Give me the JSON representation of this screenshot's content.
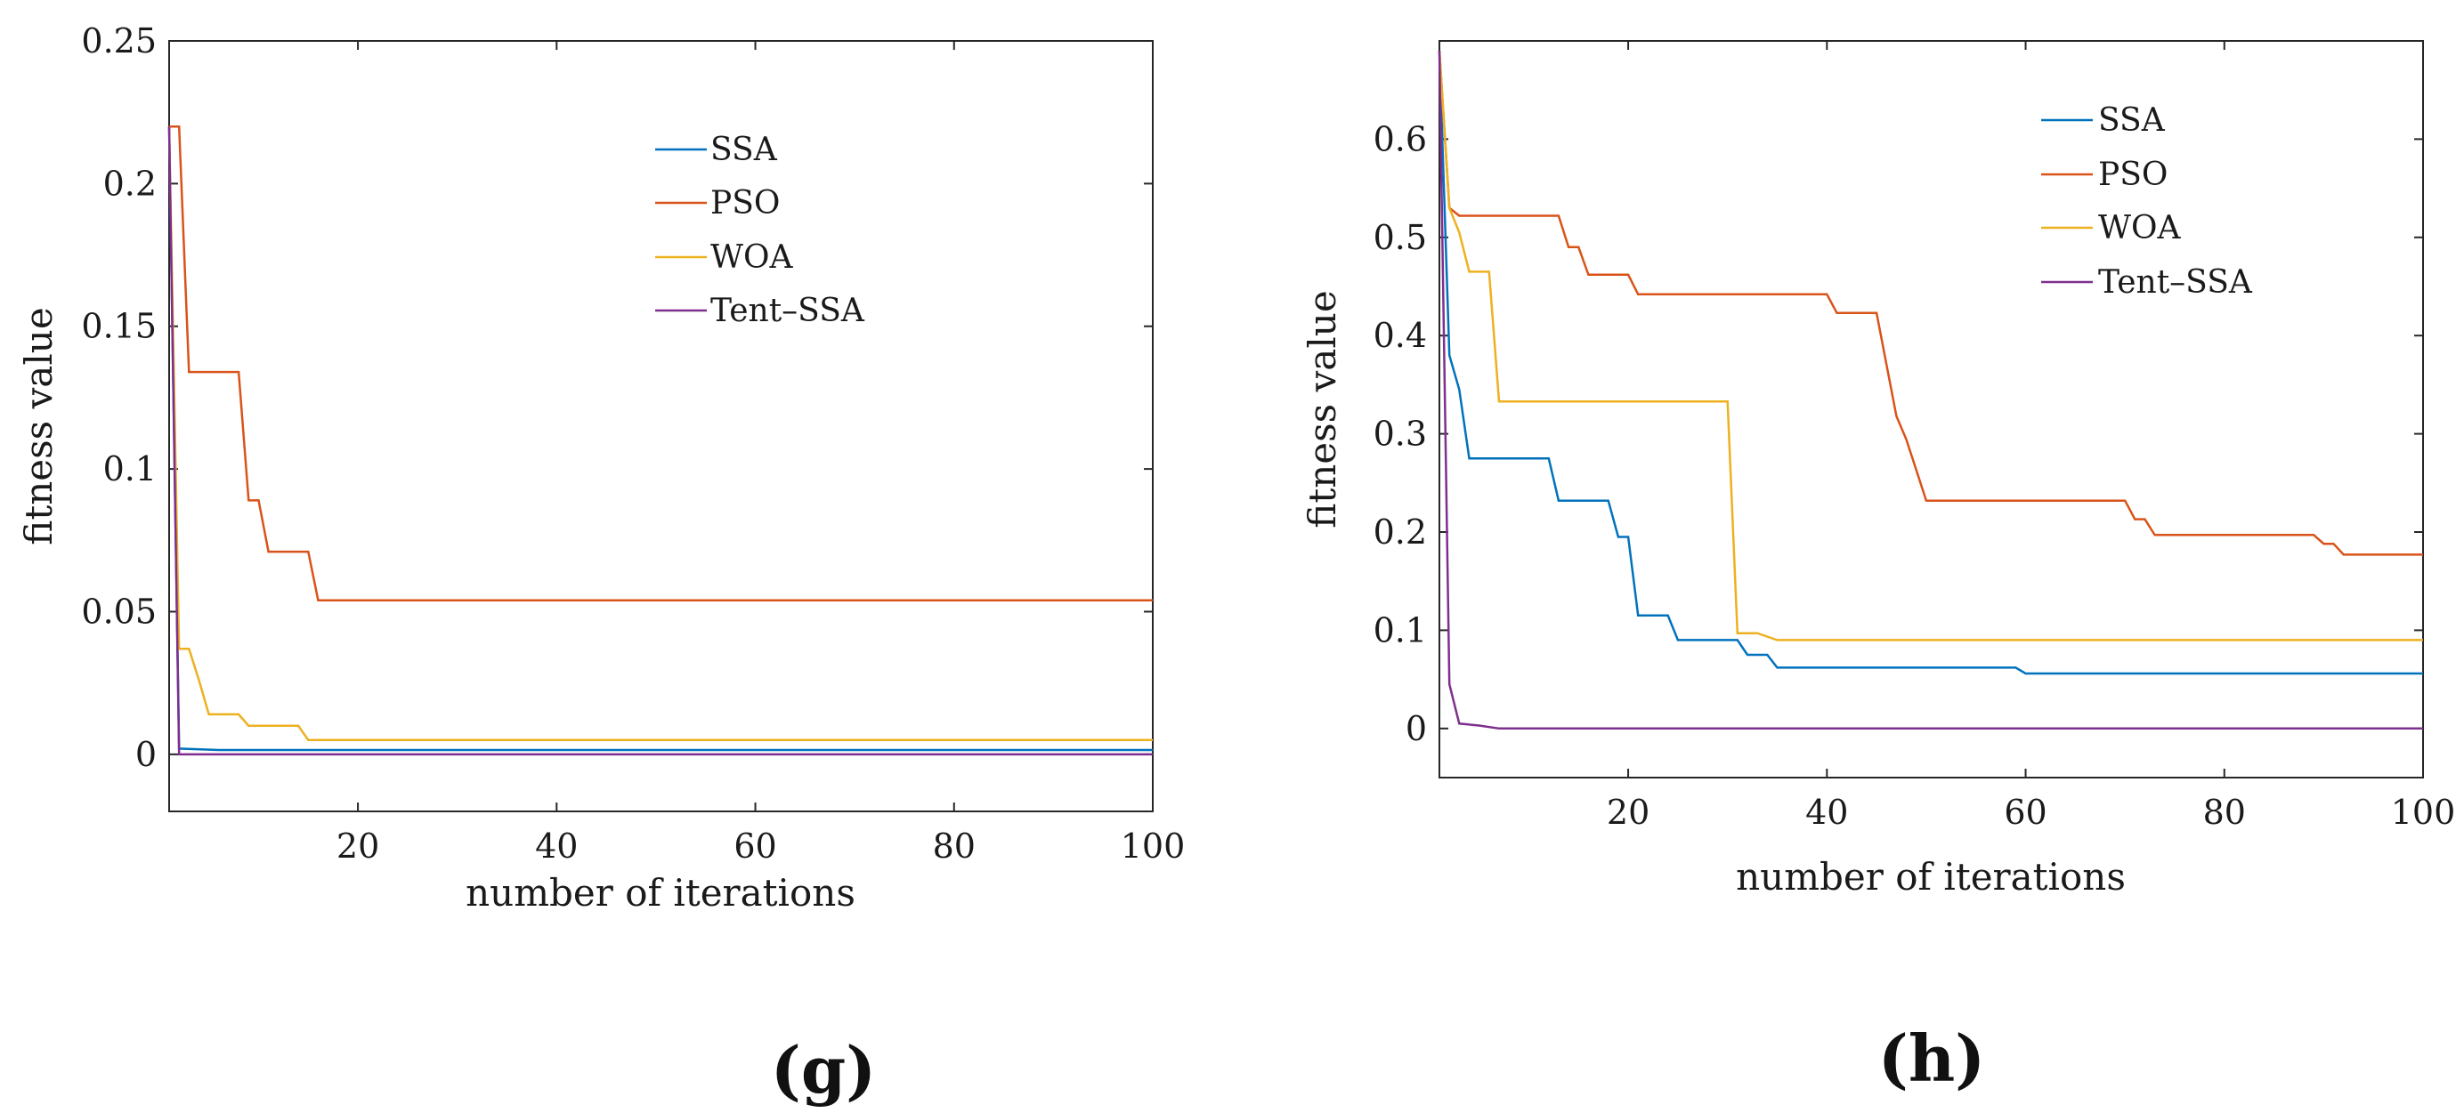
{
  "figure": {
    "panel_labels": [
      "(g)",
      "(h)"
    ]
  },
  "chart_data": [
    {
      "type": "line",
      "panel": "(g)",
      "xlabel": "number of iterations",
      "ylabel": "fitness value",
      "xlim": [
        1,
        100
      ],
      "ylim": [
        -0.02,
        0.25
      ],
      "xticks": [
        20,
        40,
        60,
        80,
        100
      ],
      "xtick_labels": [
        "20",
        "40",
        "60",
        "80",
        "100"
      ],
      "yticks": [
        0,
        0.05,
        0.1,
        0.15,
        0.2,
        0.25
      ],
      "ytick_labels": [
        "0",
        "0.05",
        "0.1",
        "0.15",
        "0.2",
        "0.25"
      ],
      "grid": false,
      "legend_position": "upper-center-right",
      "step": true,
      "series": [
        {
          "name": "SSA",
          "color": "#0072BD",
          "points": [
            [
              1,
              0.22
            ],
            [
              2,
              0.002
            ],
            [
              6,
              0.0015
            ],
            [
              100,
              0.0015
            ]
          ]
        },
        {
          "name": "PSO",
          "color": "#D95319",
          "points": [
            [
              1,
              0.22
            ],
            [
              2,
              0.22
            ],
            [
              3,
              0.134
            ],
            [
              8,
              0.134
            ],
            [
              9,
              0.089
            ],
            [
              10,
              0.089
            ],
            [
              11,
              0.071
            ],
            [
              15,
              0.071
            ],
            [
              16,
              0.054
            ],
            [
              100,
              0.054
            ]
          ]
        },
        {
          "name": "WOA",
          "color": "#EDB120",
          "points": [
            [
              1,
              0.22
            ],
            [
              2,
              0.037
            ],
            [
              3,
              0.037
            ],
            [
              4,
              0.026
            ],
            [
              5,
              0.014
            ],
            [
              8,
              0.014
            ],
            [
              9,
              0.01
            ],
            [
              14,
              0.01
            ],
            [
              15,
              0.005
            ],
            [
              100,
              0.005
            ]
          ]
        },
        {
          "name": "Tent–SSA",
          "color": "#7E2F8E",
          "points": [
            [
              1,
              0.22
            ],
            [
              2,
              0.0
            ],
            [
              100,
              0.0
            ]
          ]
        }
      ]
    },
    {
      "type": "line",
      "panel": "(h)",
      "xlabel": "number of iterations",
      "ylabel": "fitness value",
      "xlim": [
        1,
        100
      ],
      "ylim": [
        -0.05,
        0.7
      ],
      "xticks": [
        20,
        40,
        60,
        80,
        100
      ],
      "xtick_labels": [
        "20",
        "40",
        "60",
        "80",
        "100"
      ],
      "yticks": [
        0,
        0.1,
        0.2,
        0.3,
        0.4,
        0.5,
        0.6
      ],
      "ytick_labels": [
        "0",
        "0.1",
        "0.2",
        "0.3",
        "0.4",
        "0.5",
        "0.6"
      ],
      "grid": false,
      "legend_position": "upper-right",
      "step": true,
      "series": [
        {
          "name": "SSA",
          "color": "#0072BD",
          "points": [
            [
              1,
              0.69
            ],
            [
              2,
              0.38
            ],
            [
              3,
              0.345
            ],
            [
              4,
              0.275
            ],
            [
              12,
              0.275
            ],
            [
              13,
              0.232
            ],
            [
              18,
              0.232
            ],
            [
              19,
              0.195
            ],
            [
              20,
              0.195
            ],
            [
              21,
              0.115
            ],
            [
              24,
              0.115
            ],
            [
              25,
              0.09
            ],
            [
              31,
              0.09
            ],
            [
              32,
              0.075
            ],
            [
              34,
              0.075
            ],
            [
              35,
              0.062
            ],
            [
              59,
              0.062
            ],
            [
              60,
              0.056
            ],
            [
              100,
              0.056
            ]
          ]
        },
        {
          "name": "PSO",
          "color": "#D95319",
          "points": [
            [
              1,
              0.69
            ],
            [
              2,
              0.53
            ],
            [
              3,
              0.522
            ],
            [
              13,
              0.522
            ],
            [
              14,
              0.49
            ],
            [
              15,
              0.49
            ],
            [
              16,
              0.462
            ],
            [
              19,
              0.462
            ],
            [
              20,
              0.462
            ],
            [
              21,
              0.442
            ],
            [
              40,
              0.442
            ],
            [
              41,
              0.423
            ],
            [
              45,
              0.423
            ],
            [
              47,
              0.318
            ],
            [
              48,
              0.294
            ],
            [
              50,
              0.232
            ],
            [
              70,
              0.232
            ],
            [
              71,
              0.213
            ],
            [
              72,
              0.213
            ],
            [
              73,
              0.197
            ],
            [
              89,
              0.197
            ],
            [
              90,
              0.188
            ],
            [
              91,
              0.188
            ],
            [
              92,
              0.177
            ],
            [
              100,
              0.177
            ]
          ]
        },
        {
          "name": "WOA",
          "color": "#EDB120",
          "points": [
            [
              1,
              0.69
            ],
            [
              2,
              0.53
            ],
            [
              3,
              0.505
            ],
            [
              4,
              0.465
            ],
            [
              6,
              0.465
            ],
            [
              7,
              0.333
            ],
            [
              30,
              0.333
            ],
            [
              31,
              0.097
            ],
            [
              33,
              0.097
            ],
            [
              35,
              0.09
            ],
            [
              100,
              0.09
            ]
          ]
        },
        {
          "name": "Tent–SSA",
          "color": "#7E2F8E",
          "points": [
            [
              1,
              0.69
            ],
            [
              2,
              0.045
            ],
            [
              3,
              0.005
            ],
            [
              5,
              0.003
            ],
            [
              7,
              0.0
            ],
            [
              100,
              0.0
            ]
          ]
        }
      ]
    }
  ]
}
